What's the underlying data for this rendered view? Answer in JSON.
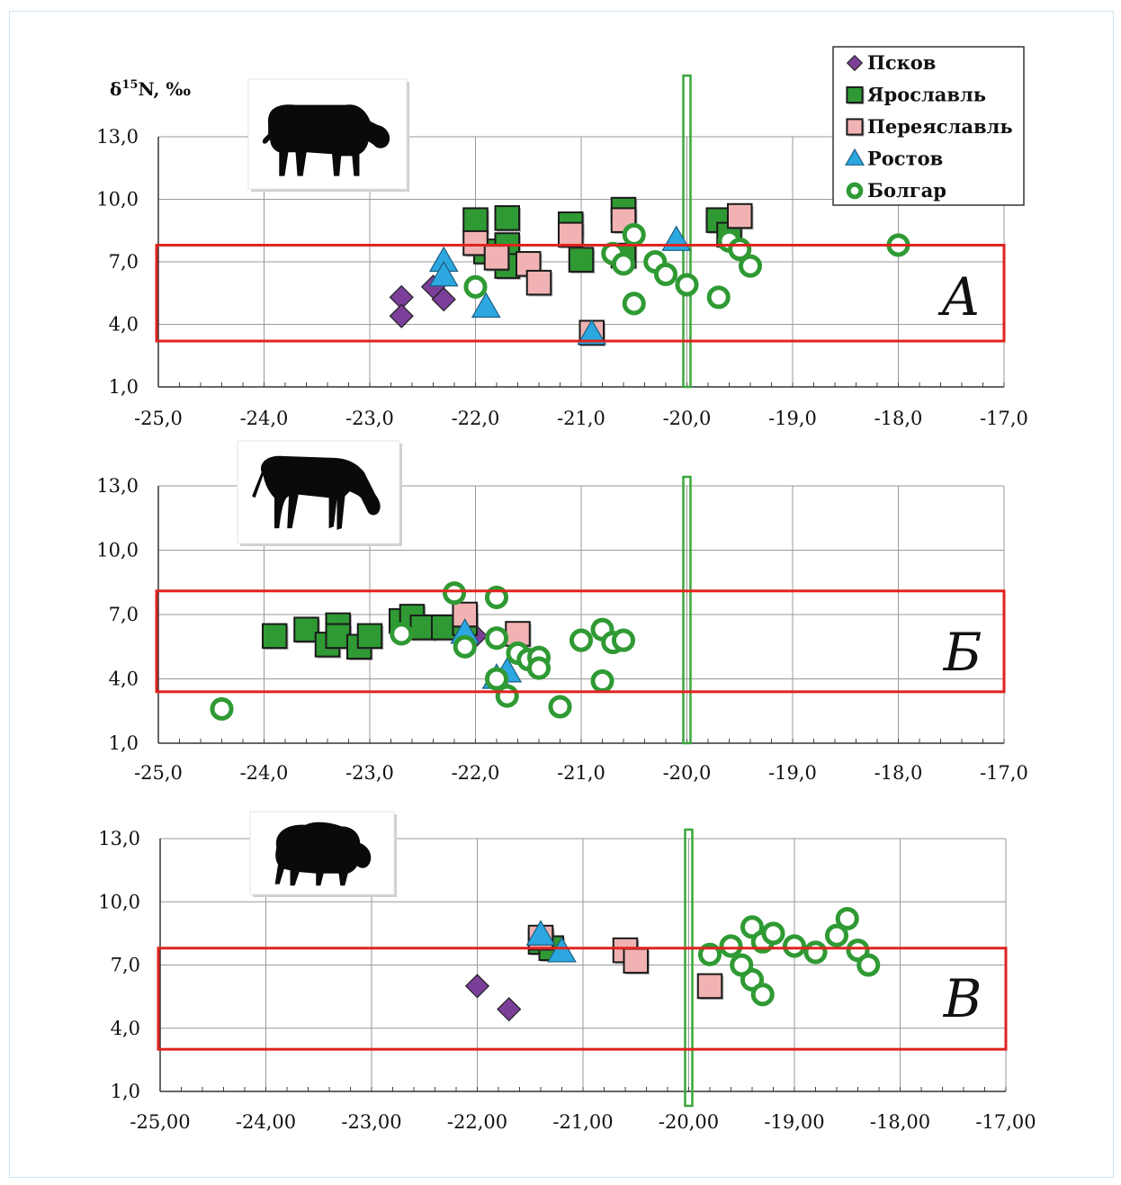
{
  "legend": [
    {
      "key": "pskov",
      "label": "Псков",
      "marker": "diamond",
      "color": "#7b3f99"
    },
    {
      "key": "yaroslavl",
      "label": "Ярославль",
      "marker": "square",
      "color": "#2f9a33"
    },
    {
      "key": "pereyaslavl",
      "label": "Переяславль",
      "marker": "square",
      "color": "#f0b2b2"
    },
    {
      "key": "rostov",
      "label": "Ростов",
      "marker": "triangle",
      "color": "#2ca7e0"
    },
    {
      "key": "bolgar",
      "label": "Болгар",
      "marker": "ring",
      "color": "#2f9a33"
    }
  ],
  "colors": {
    "red_box": "#e0231f",
    "green_line": "#3aa63a",
    "grid": "#9a9a9a"
  },
  "icons": [
    "cow-icon",
    "horse-icon",
    "sheep-icon"
  ],
  "chart_data": [
    {
      "type": "scatter",
      "panel_label": "А",
      "ylabel_base": "δ",
      "ylabel_sup": "15",
      "ylabel_rest": "N, ‰",
      "xlim": [
        -25,
        -17
      ],
      "ylim": [
        1,
        13
      ],
      "x_ticks": [
        "-25,0",
        "-24,0",
        "-23,0",
        "-22,0",
        "-21,0",
        "-20,0",
        "-19,0",
        "-18,0",
        "-17,0"
      ],
      "y_ticks": [
        "1,0",
        "4,0",
        "7,0",
        "10,0",
        "13,0"
      ],
      "red_box": {
        "x": [
          -25,
          -17
        ],
        "y": [
          3.2,
          7.8
        ]
      },
      "vertical_line_x": -20.0,
      "series": [
        {
          "key": "pskov",
          "points": [
            [
              -22.7,
              5.3
            ],
            [
              -22.7,
              4.4
            ],
            [
              -22.4,
              5.8
            ],
            [
              -22.3,
              5.2
            ]
          ]
        },
        {
          "key": "yaroslavl",
          "points": [
            [
              -22.0,
              9.0
            ],
            [
              -21.7,
              9.1
            ],
            [
              -21.9,
              7.5
            ],
            [
              -21.7,
              7.8
            ],
            [
              -21.7,
              6.8
            ],
            [
              -21.1,
              8.8
            ],
            [
              -21.0,
              7.1
            ],
            [
              -20.6,
              9.5
            ],
            [
              -20.6,
              7.3
            ],
            [
              -19.7,
              9.0
            ],
            [
              -19.6,
              8.3
            ]
          ]
        },
        {
          "key": "pereyaslavl",
          "points": [
            [
              -22.0,
              7.9
            ],
            [
              -21.8,
              7.2
            ],
            [
              -21.5,
              6.9
            ],
            [
              -21.4,
              6.0
            ],
            [
              -21.1,
              8.3
            ],
            [
              -20.9,
              3.6
            ],
            [
              -20.6,
              9.0
            ],
            [
              -19.5,
              9.2
            ]
          ]
        },
        {
          "key": "rostov",
          "points": [
            [
              -22.3,
              7.0
            ],
            [
              -22.3,
              6.3
            ],
            [
              -21.9,
              4.8
            ],
            [
              -20.1,
              8.0
            ],
            [
              -20.9,
              3.5
            ]
          ]
        },
        {
          "key": "bolgar",
          "points": [
            [
              -22.0,
              5.8
            ],
            [
              -20.7,
              7.4
            ],
            [
              -20.5,
              8.3
            ],
            [
              -20.6,
              6.9
            ],
            [
              -20.3,
              7.0
            ],
            [
              -20.2,
              6.4
            ],
            [
              -20.0,
              5.9
            ],
            [
              -20.5,
              5.0
            ],
            [
              -19.7,
              5.3
            ],
            [
              -19.6,
              8.0
            ],
            [
              -19.5,
              7.6
            ],
            [
              -19.4,
              6.8
            ],
            [
              -18.0,
              7.8
            ]
          ]
        }
      ]
    },
    {
      "type": "scatter",
      "panel_label": "Б",
      "xlim": [
        -25,
        -17
      ],
      "ylim": [
        1,
        13
      ],
      "x_ticks": [
        "-25,0",
        "-24,0",
        "-23,0",
        "-22,0",
        "-21,0",
        "-20,0",
        "-19,0",
        "-18,0",
        "-17,0"
      ],
      "y_ticks": [
        "1,0",
        "4,0",
        "7,0",
        "10,0",
        "13,0"
      ],
      "red_box": {
        "x": [
          -25,
          -17
        ],
        "y": [
          3.4,
          8.1
        ]
      },
      "vertical_line_x": -20.0,
      "series": [
        {
          "key": "pskov",
          "points": [
            [
              -22.0,
              6.0
            ]
          ]
        },
        {
          "key": "yaroslavl",
          "points": [
            [
              -23.9,
              6.0
            ],
            [
              -23.6,
              6.3
            ],
            [
              -23.4,
              5.6
            ],
            [
              -23.3,
              6.5
            ],
            [
              -23.3,
              6.0
            ],
            [
              -23.1,
              5.5
            ],
            [
              -23.0,
              6.0
            ],
            [
              -22.7,
              6.7
            ],
            [
              -22.6,
              6.9
            ],
            [
              -22.5,
              6.4
            ],
            [
              -22.3,
              6.4
            ],
            [
              -22.1,
              6.6
            ]
          ]
        },
        {
          "key": "pereyaslavl",
          "points": [
            [
              -22.1,
              7.0
            ],
            [
              -21.6,
              6.1
            ]
          ]
        },
        {
          "key": "rostov",
          "points": [
            [
              -22.1,
              6.1
            ],
            [
              -21.8,
              4.0
            ],
            [
              -21.7,
              4.3
            ]
          ]
        },
        {
          "key": "bolgar",
          "points": [
            [
              -24.4,
              2.6
            ],
            [
              -22.7,
              6.1
            ],
            [
              -22.2,
              8.0
            ],
            [
              -22.1,
              5.5
            ],
            [
              -21.8,
              7.8
            ],
            [
              -21.8,
              5.9
            ],
            [
              -21.6,
              5.2
            ],
            [
              -21.5,
              4.9
            ],
            [
              -21.4,
              5.0
            ],
            [
              -21.4,
              4.5
            ],
            [
              -21.8,
              4.0
            ],
            [
              -21.7,
              3.2
            ],
            [
              -21.2,
              2.7
            ],
            [
              -21.0,
              5.8
            ],
            [
              -20.8,
              6.3
            ],
            [
              -20.7,
              5.7
            ],
            [
              -20.6,
              5.8
            ],
            [
              -20.8,
              3.9
            ]
          ]
        }
      ]
    },
    {
      "type": "scatter",
      "panel_label": "В",
      "xlim": [
        -25,
        -17
      ],
      "ylim": [
        1,
        13
      ],
      "x_ticks": [
        "-25,00",
        "-24,00",
        "-23,00",
        "-22,00",
        "-21,00",
        "-20,00",
        "-19,00",
        "-18,00",
        "-17,00"
      ],
      "y_ticks": [
        "1,0",
        "4,0",
        "7,0",
        "10,0",
        "13,0"
      ],
      "red_box": {
        "x": [
          -25,
          -17
        ],
        "y": [
          3.0,
          7.8
        ]
      },
      "vertical_line_x": -20.0,
      "series": [
        {
          "key": "pskov",
          "points": [
            [
              -22.0,
              6.0
            ],
            [
              -21.7,
              4.9
            ]
          ]
        },
        {
          "key": "yaroslavl",
          "points": [
            [
              -21.4,
              8.1
            ],
            [
              -21.3,
              7.8
            ]
          ]
        },
        {
          "key": "pereyaslavl",
          "points": [
            [
              -21.4,
              8.3
            ],
            [
              -20.6,
              7.7
            ],
            [
              -20.5,
              7.2
            ],
            [
              -19.8,
              6.0
            ]
          ]
        },
        {
          "key": "rostov",
          "points": [
            [
              -21.4,
              8.4
            ],
            [
              -21.2,
              7.6
            ]
          ]
        },
        {
          "key": "bolgar",
          "points": [
            [
              -19.8,
              7.5
            ],
            [
              -19.6,
              7.9
            ],
            [
              -19.4,
              8.8
            ],
            [
              -19.3,
              8.1
            ],
            [
              -19.2,
              8.5
            ],
            [
              -19.0,
              7.9
            ],
            [
              -18.8,
              7.6
            ],
            [
              -18.6,
              8.4
            ],
            [
              -18.5,
              9.2
            ],
            [
              -18.4,
              7.7
            ],
            [
              -18.3,
              7.0
            ],
            [
              -19.4,
              6.3
            ],
            [
              -19.3,
              5.6
            ],
            [
              -19.5,
              7.0
            ]
          ]
        }
      ]
    }
  ]
}
